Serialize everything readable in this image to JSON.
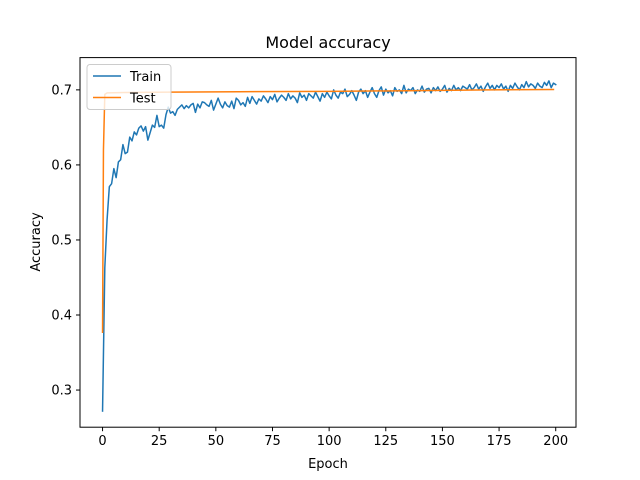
{
  "chart_data": {
    "type": "line",
    "title": "Model accuracy",
    "xlabel": "Epoch",
    "ylabel": "Accuracy",
    "xlim": [
      -9.95,
      208.95
    ],
    "ylim": [
      0.2505,
      0.743
    ],
    "xticks": [
      0,
      25,
      50,
      75,
      100,
      125,
      150,
      175,
      200
    ],
    "yticks": [
      0.3,
      0.4,
      0.5,
      0.6,
      0.7
    ],
    "x_tick_labels": [
      "0",
      "25",
      "50",
      "75",
      "100",
      "125",
      "150",
      "175",
      "200"
    ],
    "y_tick_labels": [
      "0.3",
      "0.4",
      "0.5",
      "0.6",
      "0.7"
    ],
    "grid": false,
    "legend_position": "upper-left",
    "series": [
      {
        "name": "Train",
        "color": "#1f77b4",
        "x_start": 0,
        "x_step": 1,
        "values": [
          0.272,
          0.463,
          0.527,
          0.571,
          0.575,
          0.595,
          0.583,
          0.604,
          0.607,
          0.627,
          0.615,
          0.617,
          0.637,
          0.632,
          0.644,
          0.64,
          0.649,
          0.652,
          0.645,
          0.651,
          0.633,
          0.643,
          0.653,
          0.65,
          0.666,
          0.651,
          0.653,
          0.649,
          0.667,
          0.677,
          0.669,
          0.671,
          0.666,
          0.674,
          0.677,
          0.68,
          0.675,
          0.679,
          0.676,
          0.68,
          0.682,
          0.67,
          0.681,
          0.676,
          0.684,
          0.683,
          0.68,
          0.678,
          0.686,
          0.673,
          0.681,
          0.689,
          0.681,
          0.676,
          0.684,
          0.679,
          0.677,
          0.685,
          0.675,
          0.689,
          0.686,
          0.68,
          0.683,
          0.678,
          0.69,
          0.682,
          0.691,
          0.686,
          0.681,
          0.688,
          0.685,
          0.692,
          0.688,
          0.683,
          0.691,
          0.687,
          0.694,
          0.684,
          0.689,
          0.693,
          0.69,
          0.686,
          0.695,
          0.688,
          0.692,
          0.689,
          0.683,
          0.696,
          0.69,
          0.693,
          0.686,
          0.695,
          0.692,
          0.689,
          0.697,
          0.691,
          0.685,
          0.695,
          0.69,
          0.697,
          0.692,
          0.688,
          0.7,
          0.693,
          0.689,
          0.697,
          0.695,
          0.701,
          0.691,
          0.694,
          0.699,
          0.693,
          0.686,
          0.697,
          0.701,
          0.695,
          0.699,
          0.69,
          0.697,
          0.703,
          0.695,
          0.69,
          0.699,
          0.704,
          0.693,
          0.701,
          0.696,
          0.699,
          0.692,
          0.703,
          0.698,
          0.7,
          0.695,
          0.706,
          0.696,
          0.701,
          0.699,
          0.703,
          0.695,
          0.7,
          0.698,
          0.705,
          0.697,
          0.701,
          0.702,
          0.696,
          0.703,
          0.699,
          0.704,
          0.698,
          0.701,
          0.706,
          0.697,
          0.702,
          0.699,
          0.706,
          0.7,
          0.703,
          0.699,
          0.705,
          0.703,
          0.701,
          0.707,
          0.7,
          0.703,
          0.708,
          0.701,
          0.705,
          0.698,
          0.704,
          0.709,
          0.702,
          0.706,
          0.7,
          0.706,
          0.703,
          0.708,
          0.701,
          0.705,
          0.698,
          0.706,
          0.702,
          0.709,
          0.704,
          0.7,
          0.707,
          0.703,
          0.711,
          0.704,
          0.708,
          0.706,
          0.702,
          0.709,
          0.705,
          0.703,
          0.71,
          0.706,
          0.712,
          0.703,
          0.709,
          0.707
        ]
      },
      {
        "name": "Test",
        "color": "#ff7f0e",
        "x": [
          0,
          0.4,
          1,
          2,
          10,
          30,
          60,
          100,
          140,
          170,
          199
        ],
        "values": [
          0.377,
          0.62,
          0.694,
          0.696,
          0.6965,
          0.697,
          0.6975,
          0.698,
          0.699,
          0.7,
          0.7005
        ]
      }
    ]
  }
}
